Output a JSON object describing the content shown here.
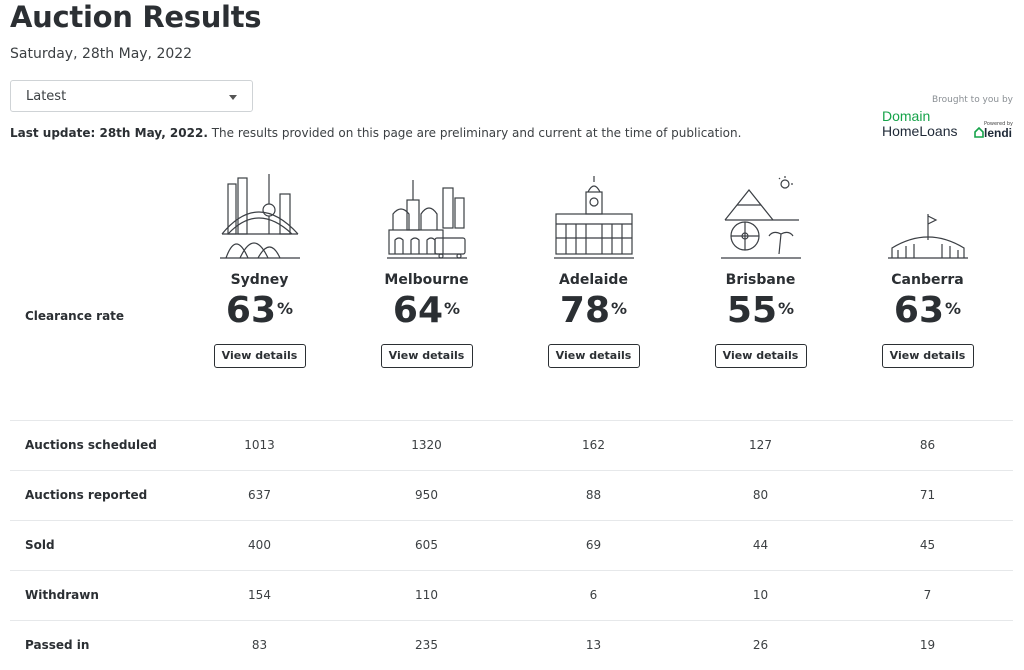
{
  "header": {
    "title": "Auction Results",
    "date": "Saturday, 28th May, 2022"
  },
  "filter": {
    "selected": "Latest"
  },
  "update": {
    "bold": "Last update: 28th May, 2022.",
    "text": " The results provided on this page are preliminary and current at the time of publication."
  },
  "sponsor": {
    "label": "Brought to you by",
    "line1": "Domain",
    "line2": "HomeLoans",
    "powered": "Powered by",
    "partner": "lendi"
  },
  "clearance": {
    "label": "Clearance rate",
    "button_label": "View details",
    "cities": [
      {
        "name": "Sydney",
        "rate": "63",
        "icon": "sydney-skyline-icon"
      },
      {
        "name": "Melbourne",
        "rate": "64",
        "icon": "melbourne-skyline-icon"
      },
      {
        "name": "Adelaide",
        "rate": "78",
        "icon": "adelaide-skyline-icon"
      },
      {
        "name": "Brisbane",
        "rate": "55",
        "icon": "brisbane-skyline-icon"
      },
      {
        "name": "Canberra",
        "rate": "63",
        "icon": "canberra-skyline-icon"
      }
    ],
    "unit": "%"
  },
  "stats": [
    {
      "label": "Auctions scheduled",
      "values": [
        "1013",
        "1320",
        "162",
        "127",
        "86"
      ]
    },
    {
      "label": "Auctions reported",
      "values": [
        "637",
        "950",
        "88",
        "80",
        "71"
      ]
    },
    {
      "label": "Sold",
      "values": [
        "400",
        "605",
        "69",
        "44",
        "45"
      ]
    },
    {
      "label": "Withdrawn",
      "values": [
        "154",
        "110",
        "6",
        "10",
        "7"
      ]
    },
    {
      "label": "Passed in",
      "values": [
        "83",
        "235",
        "13",
        "26",
        "19"
      ]
    }
  ],
  "colors": {
    "text": "#2b2f33",
    "brand_green": "#16a34a",
    "border": "#e6e8ea"
  }
}
